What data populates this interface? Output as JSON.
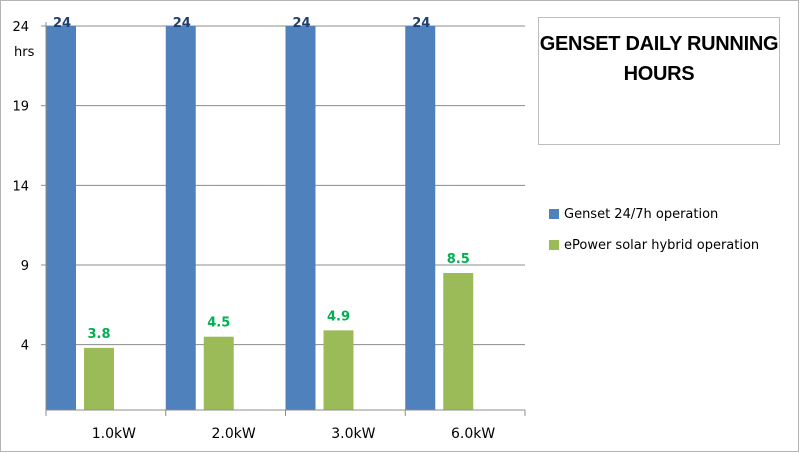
{
  "chart_data": {
    "type": "bar",
    "title": "GENSET DAILY RUNNING HOURS",
    "ylabel": "hrs",
    "categories": [
      "1.0kW",
      "2.0kW",
      "3.0kW",
      "6.0kW"
    ],
    "series": [
      {
        "name": "Genset 24/7h operation",
        "values": [
          24,
          24,
          24,
          24
        ],
        "color": "#4f81bd",
        "label_color": "#1f3f6e"
      },
      {
        "name": "ePower solar hybrid operation",
        "values": [
          3.8,
          4.5,
          4.9,
          8.5
        ],
        "color": "#9bbb59",
        "label_color": "#00b050"
      }
    ],
    "ylim": [
      -0.1,
      24
    ],
    "yticks": [
      4,
      9,
      14,
      19,
      24
    ],
    "grid": true,
    "legend": "right"
  }
}
